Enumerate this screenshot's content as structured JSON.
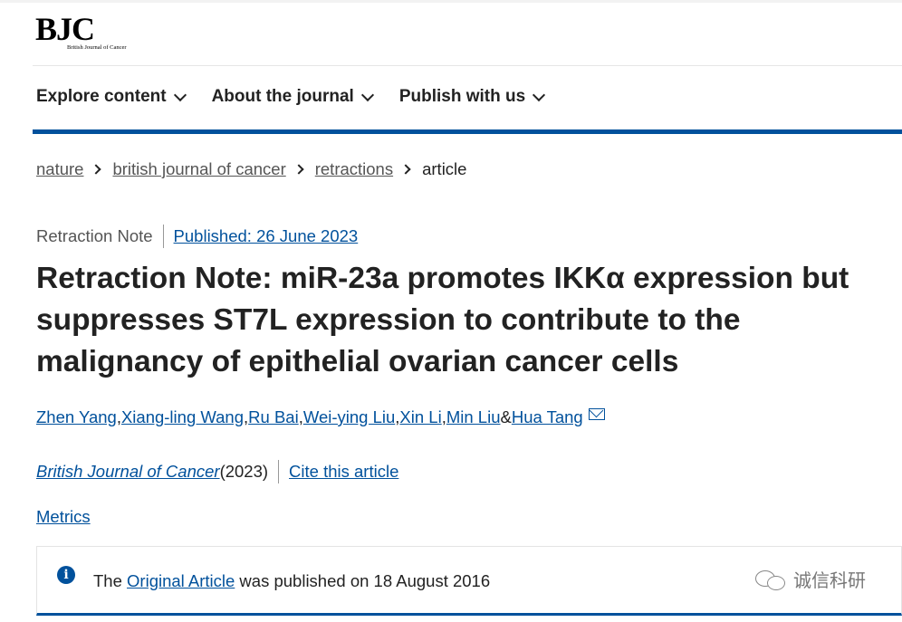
{
  "logo": {
    "mark": "BJC",
    "subtitle": "British Journal of Cancer"
  },
  "nav": [
    {
      "label": "Explore content"
    },
    {
      "label": "About the journal"
    },
    {
      "label": "Publish with us"
    }
  ],
  "breadcrumb": [
    {
      "label": "nature"
    },
    {
      "label": "british journal of cancer"
    },
    {
      "label": "retractions"
    },
    {
      "label": "article"
    }
  ],
  "article": {
    "type": "Retraction Note",
    "published": "Published: 26 June 2023",
    "title": "Retraction Note: miR-23a promotes IKKα expression but suppresses ST7L expression to contribute to the malignancy of epithelial ovarian cancer cells",
    "authors": [
      "Zhen Yang",
      "Xiang-ling Wang",
      "Ru Bai",
      "Wei-ying Liu",
      "Xin Li",
      "Min Liu",
      "Hua Tang"
    ],
    "author_sep": ", ",
    "author_and": " & ",
    "journal": "British Journal of Cancer",
    "year": " (2023)",
    "cite": "Cite this article",
    "metrics": "Metrics"
  },
  "notice": {
    "prefix": "The ",
    "link": "Original Article",
    "suffix": " was published on 18 August 2016",
    "icon": "info-icon"
  },
  "watermark": {
    "text": "诚信科研",
    "icon": "wechat-icon"
  },
  "colors": {
    "accent": "#01519c",
    "text": "#222222",
    "muted": "#555555"
  }
}
